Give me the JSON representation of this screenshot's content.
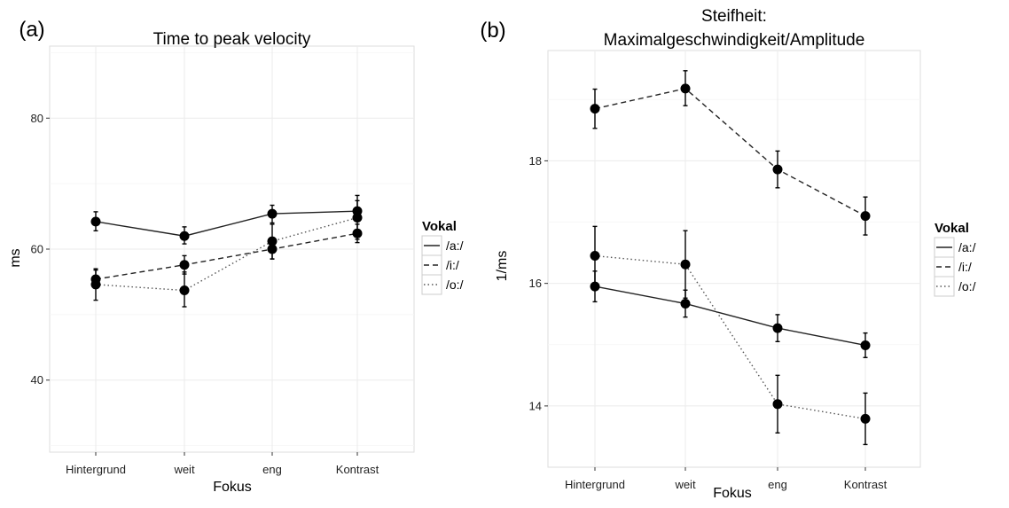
{
  "chart_data": [
    {
      "panel_label": "(a)",
      "type": "line",
      "title": [
        "Time to peak velocity"
      ],
      "xlabel": "Fokus",
      "ylabel": "ms",
      "categories": [
        "Hintergrund",
        "weit",
        "eng",
        "Kontrast"
      ],
      "ylim": [
        29,
        91
      ],
      "yticks": [
        40,
        60,
        80
      ],
      "grid": true,
      "legend": {
        "title": "Vokal",
        "position": "right"
      },
      "series": [
        {
          "name": "/a:/",
          "linestyle": "solid",
          "values": [
            64.2,
            62.0,
            65.4,
            65.8
          ],
          "err_low": [
            62.8,
            60.8,
            64.0,
            64.4
          ],
          "err_high": [
            65.7,
            63.4,
            66.7,
            67.4
          ]
        },
        {
          "name": "/i:/",
          "linestyle": "dashed",
          "values": [
            55.4,
            57.6,
            60.0,
            62.4
          ],
          "err_low": [
            54.0,
            56.2,
            58.5,
            61.0
          ],
          "err_high": [
            56.8,
            59.0,
            61.4,
            63.8
          ]
        },
        {
          "name": "/o:/",
          "linestyle": "dotted",
          "values": [
            54.6,
            53.7,
            61.2,
            64.8
          ],
          "err_low": [
            52.2,
            51.2,
            58.5,
            61.5
          ],
          "err_high": [
            57.0,
            56.5,
            63.8,
            68.2
          ]
        }
      ]
    },
    {
      "panel_label": "(b)",
      "type": "line",
      "title": [
        "Steifheit:",
        "Maximalgeschwindigkeit/Amplitude"
      ],
      "xlabel": "Fokus",
      "ylabel": "1/ms",
      "categories": [
        "Hintergrund",
        "weit",
        "eng",
        "Kontrast"
      ],
      "ylim": [
        13.0,
        19.8
      ],
      "yticks": [
        14,
        16,
        18
      ],
      "grid": true,
      "legend": {
        "title": "Vokal",
        "position": "right"
      },
      "series": [
        {
          "name": "/a:/",
          "linestyle": "solid",
          "values": [
            15.95,
            15.67,
            15.27,
            14.99
          ],
          "err_low": [
            15.7,
            15.45,
            15.05,
            14.79
          ],
          "err_high": [
            16.2,
            15.89,
            15.49,
            15.19
          ]
        },
        {
          "name": "/i:/",
          "linestyle": "dashed",
          "values": [
            18.85,
            19.18,
            17.86,
            17.1
          ],
          "err_low": [
            18.53,
            18.9,
            17.56,
            16.79
          ],
          "err_high": [
            19.17,
            19.47,
            18.16,
            17.41
          ]
        },
        {
          "name": "/o:/",
          "linestyle": "dotted",
          "values": [
            16.45,
            16.31,
            14.03,
            13.79
          ],
          "err_low": [
            15.97,
            15.76,
            13.56,
            13.37
          ],
          "err_high": [
            16.93,
            16.86,
            14.5,
            14.21
          ]
        }
      ]
    }
  ]
}
